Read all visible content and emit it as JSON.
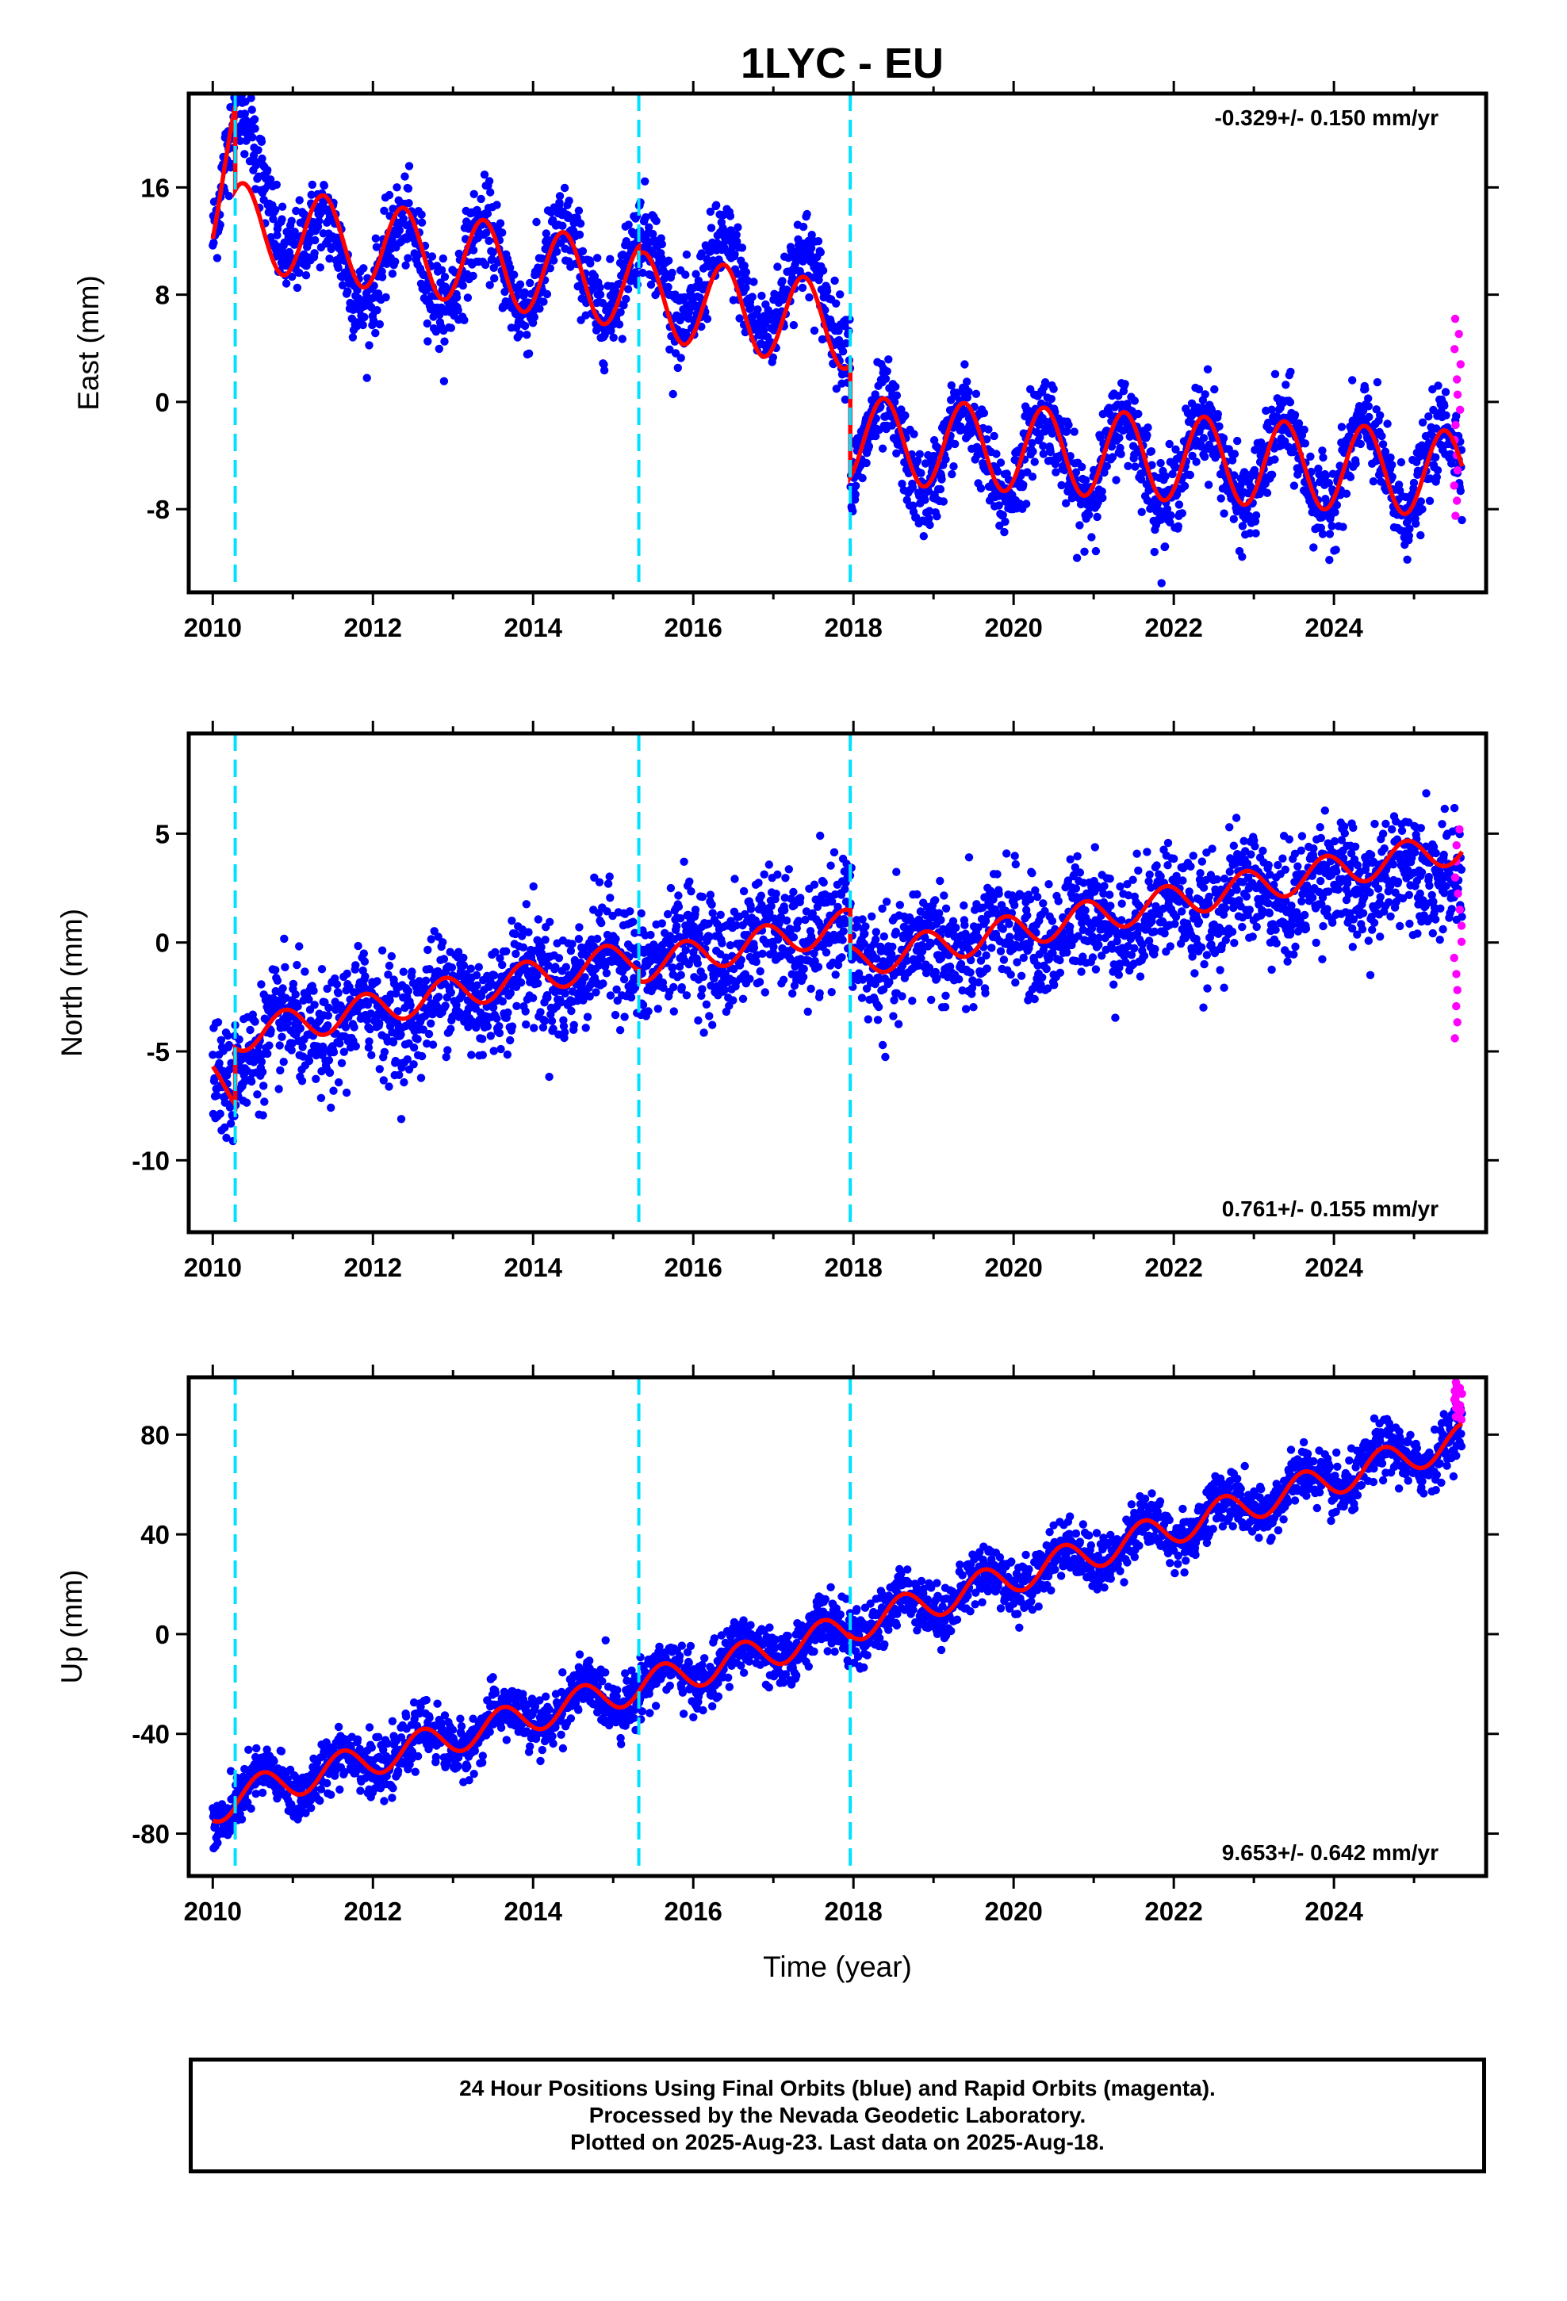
{
  "title": "1LYC - EU",
  "xlabel": "Time (year)",
  "footer": {
    "line1": "24 Hour Positions Using Final Orbits (blue) and Rapid Orbits (magenta).",
    "line2": "Processed by the Nevada Geodetic Laboratory.",
    "line3": "Plotted on 2025-Aug-23. Last data on 2025-Aug-18."
  },
  "colors": {
    "final_orbits": "#0000ff",
    "rapid_orbits": "#ff00ff",
    "model": "#ff0000",
    "event_lines": "#00e0ff"
  },
  "chart_data": [
    {
      "type": "scatter",
      "panel": "east",
      "ylabel": "East (mm)",
      "xlim": [
        2009.7,
        2025.9
      ],
      "ylim": [
        -14.2,
        23
      ],
      "xticks": [
        2010,
        2012,
        2014,
        2016,
        2018,
        2020,
        2022,
        2024
      ],
      "yticks": [
        -8,
        0,
        8,
        16
      ],
      "rate_label": "-0.329+/- 0.150 mm/yr",
      "rate_position": "top-right",
      "events": [
        2010.28,
        2015.32,
        2017.96
      ],
      "model": {
        "name": "model",
        "amplitude": 3.2,
        "peak_phase": 0.38,
        "segments": [
          {
            "x": [
              2010.0,
              2010.28
            ],
            "y": [
              14.5,
              19.5
            ]
          },
          {
            "x": [
              2010.28,
              2015.32
            ],
            "y": [
              13.2,
              8.6
            ]
          },
          {
            "x": [
              2015.32,
              2017.96
            ],
            "y": [
              8.0,
              5.6
            ]
          },
          {
            "x": [
              2017.96,
              2025.6
            ],
            "y": [
              -2.8,
              -5.4
            ]
          }
        ]
      },
      "scatter": {
        "final_noise": 1.6,
        "segments": [
          {
            "x": [
              2010.0,
              2010.28
            ],
            "y": [
              14.5,
              19.5
            ]
          },
          {
            "x": [
              2010.28,
              2011.3
            ],
            "y": [
              19.5,
              10.6
            ]
          },
          {
            "x": [
              2011.3,
              2015.32
            ],
            "y": [
              10.6,
              9.5
            ]
          },
          {
            "x": [
              2015.32,
              2017.96
            ],
            "y": [
              9.5,
              7.5
            ]
          },
          {
            "x": [
              2017.96,
              2025.6
            ],
            "y": [
              -3.5,
              -5.2
            ]
          }
        ],
        "rapid_points": {
          "x": [
            2025.5,
            2025.6
          ],
          "y": [
            -8.5,
            6.2
          ]
        }
      }
    },
    {
      "type": "scatter",
      "panel": "north",
      "ylabel": "North (mm)",
      "xlim": [
        2009.7,
        2025.9
      ],
      "ylim": [
        -13.3,
        9.6
      ],
      "xticks": [
        2010,
        2012,
        2014,
        2016,
        2018,
        2020,
        2022,
        2024
      ],
      "yticks": [
        -10,
        -5,
        0,
        5
      ],
      "rate_label": "0.761+/- 0.155 mm/yr",
      "rate_position": "bottom-right",
      "events": [
        2010.28,
        2015.32,
        2017.96
      ],
      "model": {
        "name": "model",
        "amplitude": 0.75,
        "peak_phase": 0.9,
        "segments": [
          {
            "x": [
              2010.0,
              2010.28
            ],
            "y": [
              -6.3,
              -6.9
            ]
          },
          {
            "x": [
              2010.28,
              2015.32
            ],
            "y": [
              -4.3,
              -0.6
            ]
          },
          {
            "x": [
              2015.32,
              2017.96
            ],
            "y": [
              -1.1,
              0.8
            ]
          },
          {
            "x": [
              2017.96,
              2025.6
            ],
            "y": [
              -0.9,
              4.4
            ]
          }
        ]
      },
      "scatter": {
        "final_noise": 1.3,
        "segments": [
          {
            "x": [
              2010.0,
              2010.28
            ],
            "y": [
              -6.5,
              -6.5
            ]
          },
          {
            "x": [
              2010.28,
              2015.32
            ],
            "y": [
              -4.8,
              -0.6
            ]
          },
          {
            "x": [
              2015.32,
              2017.96
            ],
            "y": [
              -0.8,
              0.8
            ]
          },
          {
            "x": [
              2017.96,
              2025.6
            ],
            "y": [
              -0.9,
              3.6
            ]
          }
        ],
        "rapid_points": {
          "x": [
            2025.5,
            2025.6
          ],
          "y": [
            -4.4,
            5.2
          ]
        }
      }
    },
    {
      "type": "scatter",
      "panel": "up",
      "ylabel": "Up (mm)",
      "xlim": [
        2009.7,
        2025.9
      ],
      "ylim": [
        -97,
        103
      ],
      "xticks": [
        2010,
        2012,
        2014,
        2016,
        2018,
        2020,
        2022,
        2024
      ],
      "yticks": [
        -80,
        -40,
        0,
        40,
        80
      ],
      "rate_label": "9.653+/- 0.642 mm/yr",
      "rate_position": "bottom-right",
      "events": [
        2010.28,
        2015.32,
        2017.96
      ],
      "model": {
        "name": "model",
        "amplitude": 6.5,
        "peak_phase": 0.62,
        "segments": [
          {
            "x": [
              2010.0,
              2010.28
            ],
            "y": [
              -70,
              -66
            ]
          },
          {
            "x": [
              2010.28,
              2015.32
            ],
            "y": [
              -65,
              -21
            ]
          },
          {
            "x": [
              2015.32,
              2017.96
            ],
            "y": [
              -21,
              2
            ]
          },
          {
            "x": [
              2017.96,
              2025.6
            ],
            "y": [
              3,
              78
            ]
          }
        ]
      },
      "scatter": {
        "final_noise": 5.5,
        "segments": [
          {
            "x": [
              2010.0,
              2010.28
            ],
            "y": [
              -72,
              -67
            ]
          },
          {
            "x": [
              2010.28,
              2015.32
            ],
            "y": [
              -65,
              -21
            ]
          },
          {
            "x": [
              2015.32,
              2017.96
            ],
            "y": [
              -21,
              2
            ]
          },
          {
            "x": [
              2017.96,
              2025.6
            ],
            "y": [
              3,
              78
            ]
          }
        ],
        "rapid_points": {
          "x": [
            2025.5,
            2025.6
          ],
          "y": [
            86,
            101
          ]
        }
      }
    }
  ]
}
